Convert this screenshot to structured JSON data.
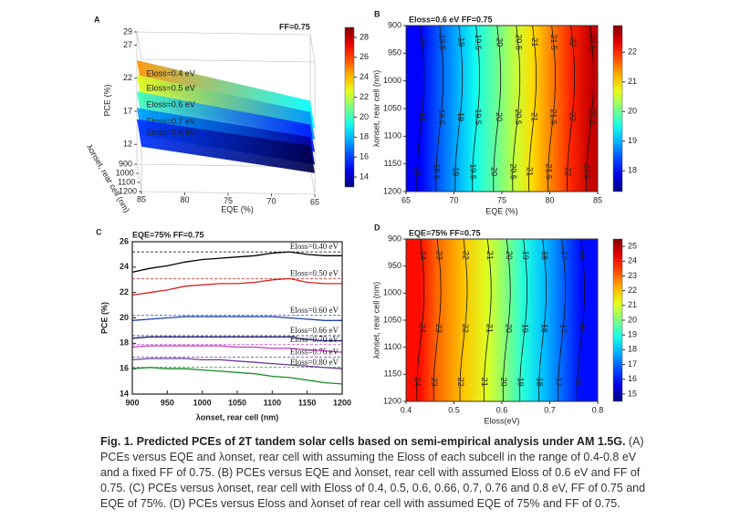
{
  "chart_data": [
    {
      "type": "surface3d",
      "label": "A",
      "title": "FF=0.75",
      "zlabel": "PCE (%)",
      "xlabel": "EQE (%)",
      "ylabel": "λonset, rear cell (nm)",
      "xlim": [
        85,
        65
      ],
      "xticks": [
        85,
        80,
        75,
        70,
        65
      ],
      "ylim": [
        900,
        1200
      ],
      "yticks": [
        900,
        1000,
        1100,
        1200
      ],
      "zlim": [
        9,
        29
      ],
      "zticks": [
        12,
        17,
        22,
        27,
        29
      ],
      "colorbar": {
        "lim": [
          13,
          29
        ],
        "ticks": [
          14,
          16,
          18,
          20,
          22,
          24,
          26,
          28
        ]
      },
      "x": [
        85,
        65
      ],
      "series": [
        {
          "name": "Eloss=0.4 eV",
          "values": [
            24.7,
            19.0
          ]
        },
        {
          "name": "Eloss=0.5 eV",
          "values": [
            22.5,
            17.3
          ]
        },
        {
          "name": "Eloss=0.6 eV",
          "values": [
            20.0,
            15.4
          ]
        },
        {
          "name": "Eloss=0.7 eV",
          "values": [
            17.5,
            13.5
          ]
        },
        {
          "name": "Eloss=0.8 eV",
          "values": [
            15.8,
            12.2
          ]
        }
      ]
    },
    {
      "type": "contour",
      "label": "B",
      "title": "Eloss=0.6 eV  FF=0.75",
      "xlabel": "EQE (%)",
      "ylabel": "λonset, rear cell (nm)",
      "xlim": [
        65,
        85
      ],
      "xticks": [
        65,
        70,
        75,
        80,
        85
      ],
      "ylim": [
        900,
        1200
      ],
      "yticks": [
        900,
        950,
        1000,
        1050,
        1100,
        1150,
        1200
      ],
      "colorbar": {
        "lim": [
          17.3,
          22.9
        ],
        "ticks": [
          18,
          19,
          20,
          21,
          22
        ]
      },
      "contours": {
        "levels": [
          18,
          18.5,
          19,
          19.5,
          20,
          20.5,
          21,
          21.5,
          22,
          22.5
        ],
        "x": [
          66.5,
          68.5,
          70.5,
          72.3,
          74.5,
          76.5,
          78.2,
          80.2,
          82.2,
          84.2
        ]
      }
    },
    {
      "type": "line",
      "label": "C",
      "title": "EQE=75% FF=0.75",
      "xlabel": "λonset, rear cell (nm)",
      "ylabel": "PCE (%)",
      "x": [
        900,
        925,
        950,
        975,
        1000,
        1025,
        1050,
        1075,
        1100,
        1125,
        1150,
        1175,
        1200
      ],
      "xlim": [
        900,
        1200
      ],
      "xticks": [
        900,
        950,
        1000,
        1050,
        1100,
        1150,
        1200
      ],
      "ylim": [
        14,
        26
      ],
      "yticks": [
        14,
        16,
        18,
        20,
        22,
        24,
        26
      ],
      "series": [
        {
          "name": "Eloss=0.40 eV",
          "color": "#000000",
          "max": 25.2,
          "values": [
            23.6,
            23.9,
            24.1,
            24.4,
            24.6,
            24.7,
            24.8,
            24.9,
            25.1,
            25.2,
            25.0,
            24.9,
            24.9
          ]
        },
        {
          "name": "Eloss=0.50 eV",
          "color": "#d62020",
          "max": 23.1,
          "values": [
            21.8,
            22.0,
            22.2,
            22.5,
            22.6,
            22.7,
            22.7,
            22.8,
            23.0,
            23.1,
            22.8,
            22.7,
            22.7
          ]
        },
        {
          "name": "Eloss=0.60 eV",
          "color": "#1f3fb0",
          "max": 20.2,
          "values": [
            19.8,
            19.9,
            20.0,
            20.1,
            20.1,
            20.1,
            20.1,
            20.1,
            20.1,
            20.0,
            19.9,
            19.8,
            19.8
          ]
        },
        {
          "name": "Eloss=0.66 eV",
          "color": "#1a1a70",
          "max": 18.6,
          "values": [
            18.4,
            18.5,
            18.5,
            18.5,
            18.5,
            18.5,
            18.5,
            18.5,
            18.5,
            18.5,
            18.3,
            18.2,
            18.2
          ]
        },
        {
          "name": "Eloss=0.70 eV",
          "color": "#c03cc0",
          "max": 17.9,
          "values": [
            17.7,
            17.8,
            17.8,
            17.8,
            17.8,
            17.8,
            17.7,
            17.7,
            17.6,
            17.6,
            17.5,
            17.4,
            17.3
          ]
        },
        {
          "name": "Eloss=0.76 eV",
          "color": "#6a3aa0",
          "max": 16.9,
          "values": [
            16.7,
            16.8,
            16.8,
            16.8,
            16.7,
            16.7,
            16.6,
            16.5,
            16.4,
            16.3,
            16.2,
            16.1,
            16.0
          ]
        },
        {
          "name": "Eloss=0.80 eV",
          "color": "#1a8a2a",
          "max": 16.1,
          "values": [
            16.0,
            16.1,
            16.0,
            16.0,
            15.9,
            15.8,
            15.7,
            15.6,
            15.4,
            15.3,
            15.1,
            14.9,
            14.8
          ]
        }
      ]
    },
    {
      "type": "contour",
      "label": "D",
      "title": "EQE=75% FF=0.75",
      "xlabel": "Eloss(eV)",
      "ylabel": "λonset, rear cell (nm)",
      "xlim": [
        0.4,
        0.8
      ],
      "xticks": [
        0.4,
        0.5,
        0.6,
        0.7,
        0.8
      ],
      "ylim": [
        900,
        1200
      ],
      "yticks": [
        900,
        950,
        1000,
        1050,
        1100,
        1150,
        1200
      ],
      "colorbar": {
        "lim": [
          14.5,
          25.5
        ],
        "ticks": [
          15,
          16,
          17,
          18,
          19,
          20,
          21,
          22,
          23,
          24,
          25
        ]
      },
      "contours": {
        "levels": [
          24,
          23,
          22,
          21,
          20,
          19,
          18,
          17,
          16
        ],
        "x": [
          0.43,
          0.465,
          0.52,
          0.57,
          0.61,
          0.645,
          0.685,
          0.725,
          0.765
        ]
      }
    }
  ],
  "caption": {
    "title": "Fig. 1. Predicted PCEs of 2T tandem solar cells based on semi-empirical analysis under AM 1.5G.",
    "text": "(A) PCEs versus EQE and λonset, rear cell with assuming the Eloss of each subcell in the range of 0.4-0.8 eV and a fixed FF of 0.75. (B) PCEs versus EQE and λonset, rear cell with assumed Eloss of 0.6 eV and FF of 0.75. (C) PCEs versus λonset, rear cell with Eloss of 0.4, 0.5, 0.6, 0.66, 0.7, 0.76 and 0.8 eV, FF of 0.75 and EQE of 75%. (D) PCEs versus Eloss and λonset of rear cell with assumed EQE of 75% and FF of 0.75."
  }
}
